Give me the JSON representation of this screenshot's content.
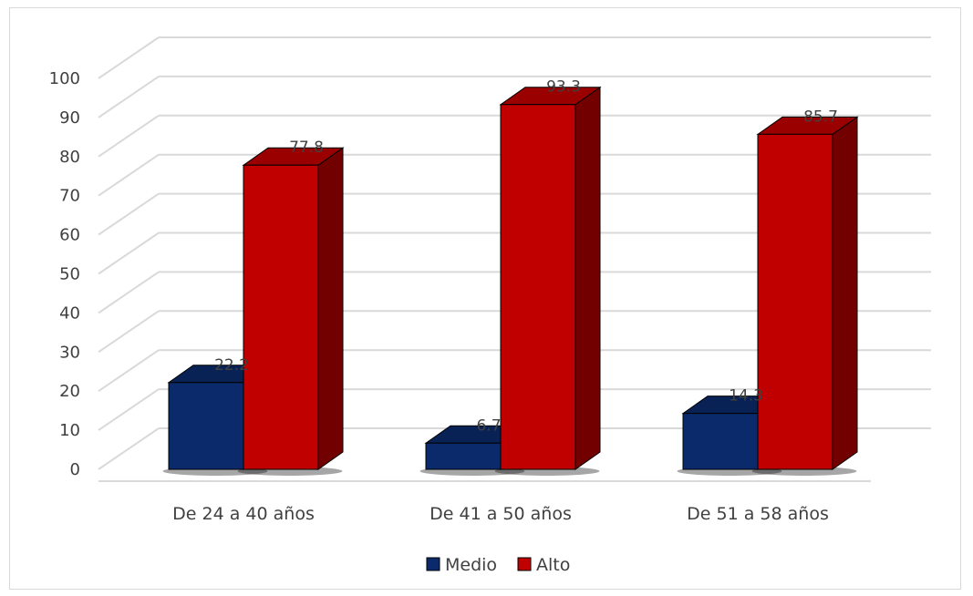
{
  "chart_data": {
    "type": "bar",
    "categories": [
      "De 24 a 40 años",
      "De 41 a 50 años",
      "De 51 a 58 años"
    ],
    "series": [
      {
        "name": "Medio",
        "values": [
          22.2,
          6.7,
          14.3
        ],
        "color": "#0b2a6b"
      },
      {
        "name": "Alto",
        "values": [
          77.8,
          93.3,
          85.7
        ],
        "color": "#c00000"
      }
    ],
    "yticks": [
      "0",
      "10",
      "20",
      "30",
      "40",
      "50",
      "60",
      "70",
      "80",
      "90",
      "100"
    ],
    "ylim": [
      0,
      100
    ],
    "grid": true,
    "legend_position": "bottom",
    "style": "3d-clustered-column"
  }
}
